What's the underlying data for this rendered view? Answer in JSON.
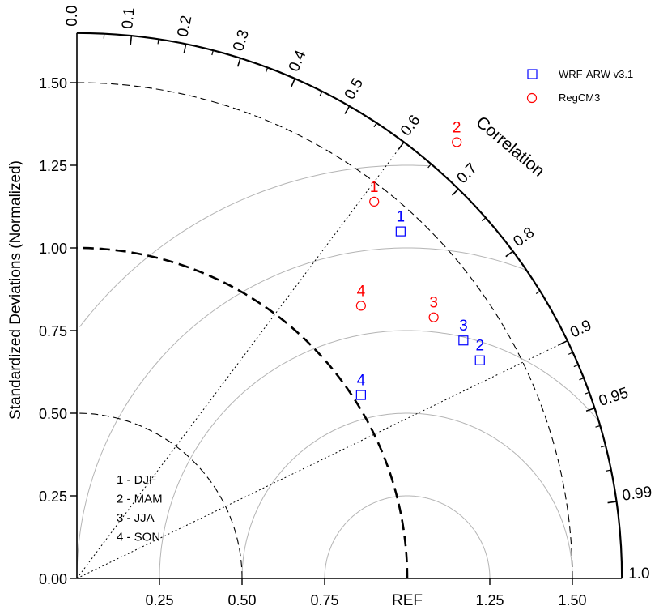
{
  "chart_data": {
    "type": "scatter",
    "subtype": "taylor-diagram",
    "ylabel": "Standardized Deviations (Normalized)",
    "correlation_label": "Correlation",
    "ref_label": "REF",
    "ylim": [
      0,
      1.65
    ],
    "y_ticks": [
      {
        "v": 0.0,
        "label": "0.00"
      },
      {
        "v": 0.25,
        "label": "0.25"
      },
      {
        "v": 0.5,
        "label": "0.50"
      },
      {
        "v": 0.75,
        "label": "0.75"
      },
      {
        "v": 1.0,
        "label": "1.00"
      },
      {
        "v": 1.25,
        "label": "1.25"
      },
      {
        "v": 1.5,
        "label": "1.50"
      }
    ],
    "x_ticks": [
      {
        "v": 0.25,
        "label": "0.25"
      },
      {
        "v": 0.5,
        "label": "0.50"
      },
      {
        "v": 0.75,
        "label": "0.75"
      },
      {
        "v": 1.25,
        "label": "1.25"
      },
      {
        "v": 1.5,
        "label": "1.50"
      }
    ],
    "correlation_ticks": [
      {
        "v": 0.0,
        "label": "0.0"
      },
      {
        "v": 0.1,
        "label": "0.1"
      },
      {
        "v": 0.2,
        "label": "0.2"
      },
      {
        "v": 0.3,
        "label": "0.3"
      },
      {
        "v": 0.4,
        "label": "0.4"
      },
      {
        "v": 0.5,
        "label": "0.5"
      },
      {
        "v": 0.6,
        "label": "0.6"
      },
      {
        "v": 0.7,
        "label": "0.7"
      },
      {
        "v": 0.8,
        "label": "0.8"
      },
      {
        "v": 0.9,
        "label": "0.9"
      },
      {
        "v": 0.95,
        "label": "0.95"
      },
      {
        "v": 0.99,
        "label": "0.99"
      },
      {
        "v": 1.0,
        "label": "1.0"
      }
    ],
    "correlation_radials": [
      0.6,
      0.9
    ],
    "std_arcs": [
      0.5,
      1.0,
      1.5
    ],
    "rms_arcs": [
      0.25,
      0.5,
      0.75,
      1.0,
      1.25
    ],
    "series": [
      {
        "name": "WRF-ARW v3.1",
        "marker": "square",
        "color": "#0000ff",
        "points": [
          {
            "label": "1",
            "x": 0.98,
            "y": 1.05
          },
          {
            "label": "2",
            "x": 1.22,
            "y": 0.66
          },
          {
            "label": "3",
            "x": 1.17,
            "y": 0.72
          },
          {
            "label": "4",
            "x": 0.86,
            "y": 0.555
          }
        ]
      },
      {
        "name": "RegCM3",
        "marker": "circle",
        "color": "#ff0000",
        "points": [
          {
            "label": "1",
            "x": 0.9,
            "y": 1.14
          },
          {
            "label": "2",
            "x": 1.15,
            "y": 1.32
          },
          {
            "label": "3",
            "x": 1.08,
            "y": 0.79
          },
          {
            "label": "4",
            "x": 0.86,
            "y": 0.825
          }
        ]
      }
    ],
    "season_key": [
      "1 - DJF",
      "2 - MAM",
      "3 - JJA",
      "4 - SON"
    ],
    "legend_position": "top-right",
    "grid": false
  }
}
